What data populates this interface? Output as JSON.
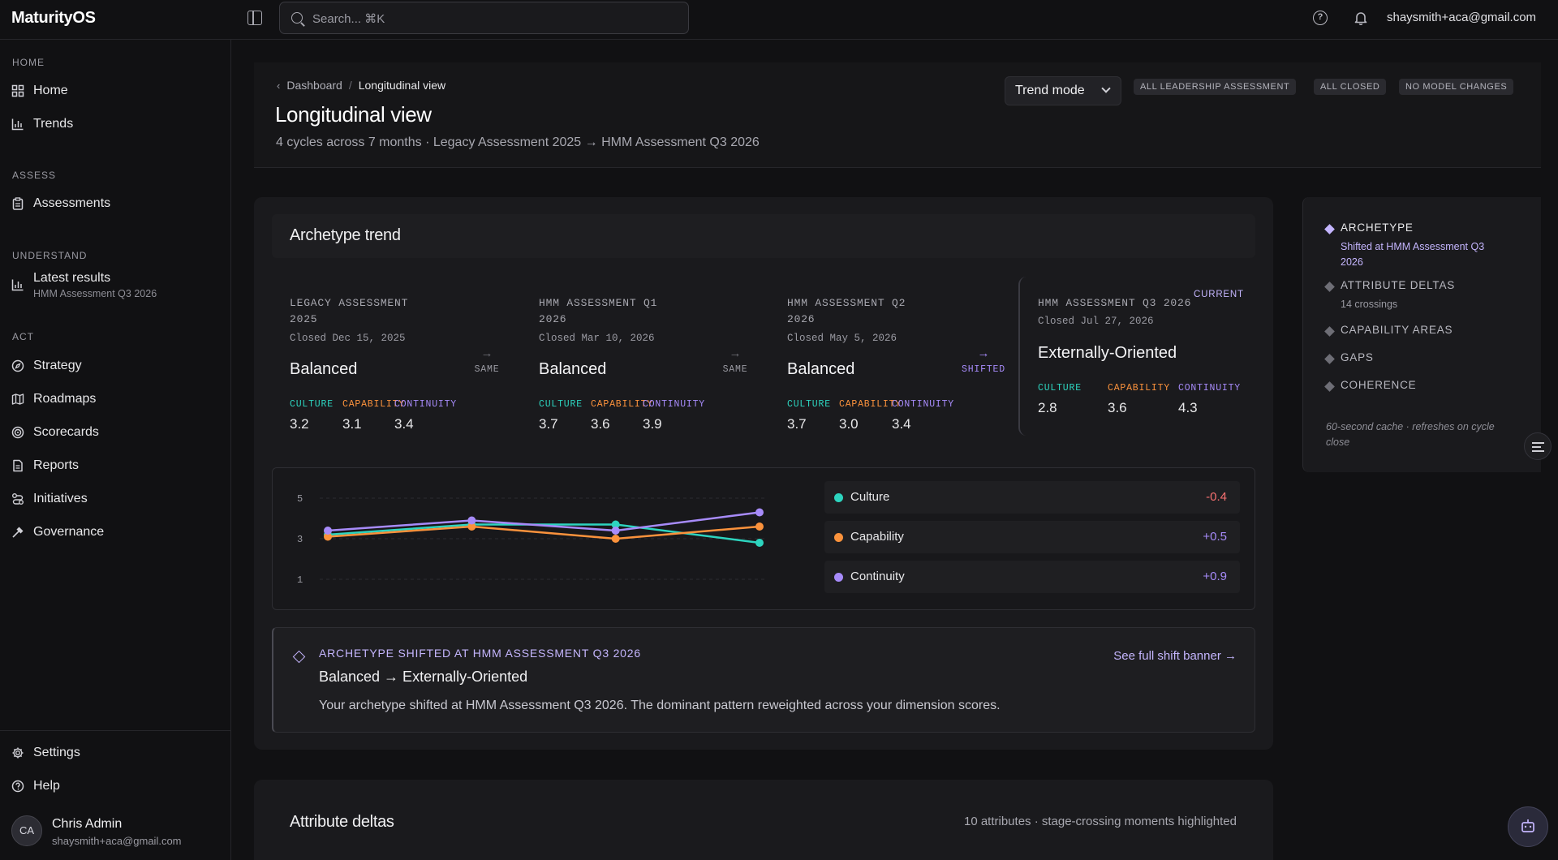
{
  "app": {
    "brand": "MaturityOS",
    "search_placeholder": "Search... ⌘K",
    "user_email": "shaysmith+aca@gmail.com"
  },
  "sidebar": {
    "sections": {
      "home": "HOME",
      "assess": "ASSESS",
      "understand": "UNDERSTAND",
      "act": "ACT"
    },
    "items": {
      "home": "Home",
      "trends": "Trends",
      "assessments": "Assessments",
      "latest": "Latest results",
      "latest_sub": "HMM Assessment Q3 2026",
      "strategy": "Strategy",
      "roadmaps": "Roadmaps",
      "scorecards": "Scorecards",
      "reports": "Reports",
      "initiatives": "Initiatives",
      "governance": "Governance",
      "settings": "Settings",
      "help": "Help"
    },
    "user": {
      "initials": "CA",
      "name": "Chris Admin",
      "email": "shaysmith+aca@gmail.com"
    }
  },
  "header": {
    "breadcrumb_parent": "Dashboard",
    "breadcrumb_current": "Longitudinal view",
    "title": "Longitudinal view",
    "subtitle": "4 cycles across 7 months · Legacy Assessment 2025 → HMM Assessment Q3 2026",
    "trend_mode": "Trend mode",
    "badges": [
      "ALL LEADERSHIP ASSESSMENT",
      "ALL CLOSED",
      "NO MODEL CHANGES"
    ]
  },
  "archetype": {
    "title": "Archetype trend",
    "dim_labels": {
      "culture": "CULTURE",
      "capability": "CAPABILITY",
      "continuity": "CONTINUITY"
    },
    "current_tag": "CURRENT",
    "cycles": [
      {
        "name": "LEGACY ASSESSMENT 2025",
        "date": "Closed Dec 15, 2025",
        "archetype": "Balanced",
        "culture": "3.2",
        "capability": "3.1",
        "continuity": "3.4"
      },
      {
        "name": "HMM ASSESSMENT Q1 2026",
        "date": "Closed Mar 10, 2026",
        "archetype": "Balanced",
        "culture": "3.7",
        "capability": "3.6",
        "continuity": "3.9"
      },
      {
        "name": "HMM ASSESSMENT Q2 2026",
        "date": "Closed May 5, 2026",
        "archetype": "Balanced",
        "culture": "3.7",
        "capability": "3.0",
        "continuity": "3.4"
      },
      {
        "name": "HMM ASSESSMENT Q3 2026",
        "date": "Closed Jul 27, 2026",
        "archetype": "Externally-Oriented",
        "culture": "2.8",
        "capability": "3.6",
        "continuity": "4.3"
      }
    ],
    "steps": [
      "SAME",
      "SAME",
      "SHIFTED"
    ]
  },
  "chart_data": {
    "type": "line",
    "x": [
      "Legacy Assessment 2025",
      "HMM Assessment Q1 2026",
      "HMM Assessment Q2 2026",
      "HMM Assessment Q3 2026"
    ],
    "yticks": [
      "5",
      "3",
      "1"
    ],
    "ylim": [
      1,
      5
    ],
    "series": [
      {
        "name": "Culture",
        "color": "#2dd4bf",
        "values": [
          3.2,
          3.7,
          3.7,
          2.8
        ],
        "delta": "-0.4",
        "delta_color": "#f87171"
      },
      {
        "name": "Capability",
        "color": "#fb923c",
        "values": [
          3.1,
          3.6,
          3.0,
          3.6
        ],
        "delta": "+0.5",
        "delta_color": "#a78bfa"
      },
      {
        "name": "Continuity",
        "color": "#a78bfa",
        "values": [
          3.4,
          3.9,
          3.4,
          4.3
        ],
        "delta": "+0.9",
        "delta_color": "#a78bfa"
      }
    ],
    "grid": true
  },
  "shift": {
    "kicker": "ARCHETYPE SHIFTED AT HMM ASSESSMENT Q3 2026",
    "title": "Balanced → Externally-Oriented",
    "desc": "Your archetype shifted at HMM Assessment Q3 2026. The dominant pattern reweighted across your dimension scores.",
    "link": "See full shift banner →"
  },
  "rail": {
    "items": [
      {
        "title": "ARCHETYPE",
        "sub": "Shifted at HMM Assessment Q3 2026"
      },
      {
        "title": "ATTRIBUTE DELTAS",
        "sub": "14 crossings"
      },
      {
        "title": "CAPABILITY AREAS",
        "sub": ""
      },
      {
        "title": "GAPS",
        "sub": ""
      },
      {
        "title": "COHERENCE",
        "sub": ""
      }
    ],
    "note": "60-second cache · refreshes on cycle close"
  },
  "attributes": {
    "title": "Attribute deltas",
    "meta": "10 attributes · stage-crossing moments highlighted"
  }
}
